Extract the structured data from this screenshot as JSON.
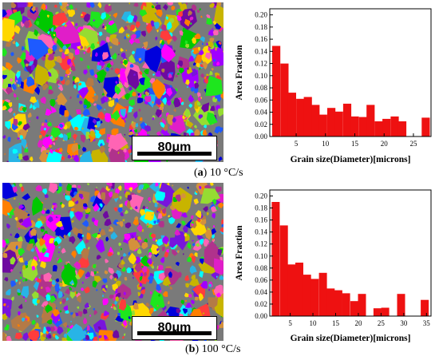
{
  "panels": [
    {
      "caption_letter": "a",
      "caption_text": " 10 °C/s",
      "scale_label": "80μm"
    },
    {
      "caption_letter": "b",
      "caption_text": " 100 °C/s",
      "scale_label": "80μm"
    }
  ],
  "colors": {
    "bar": "#ee1111",
    "grain_palette": [
      "#ff00ff",
      "#e01ec8",
      "#b0328c",
      "#ff3c3c",
      "#ff7f00",
      "#d4913c",
      "#b47a46",
      "#c8b400",
      "#ffd700",
      "#1ee61e",
      "#00c800",
      "#00ffff",
      "#28b4e6",
      "#1e5aff",
      "#0000dc",
      "#7814dc",
      "#a000ff",
      "#6e0aa0",
      "#ff64b4",
      "#96dc32"
    ]
  },
  "chart_data": [
    {
      "type": "bar",
      "xlabel": "Grain size(Diameter)[microns]",
      "ylabel": "Area Fraction",
      "xlim": [
        0.5,
        28
      ],
      "xticks": [
        5,
        10,
        15,
        20,
        25
      ],
      "ylim": [
        0,
        0.21
      ],
      "yticks": [
        "0.00",
        "0.02",
        "0.04",
        "0.06",
        "0.08",
        "0.10",
        "0.12",
        "0.14",
        "0.16",
        "0.18",
        "0.20"
      ],
      "x": [
        1.6,
        3.0,
        4.3,
        5.7,
        7.0,
        8.3,
        9.6,
        11.0,
        12.3,
        13.7,
        15.0,
        16.4,
        17.7,
        19.1,
        20.4,
        21.8,
        23.1,
        24.4,
        27.1
      ],
      "values": [
        0.149,
        0.12,
        0.072,
        0.062,
        0.065,
        0.052,
        0.036,
        0.047,
        0.041,
        0.054,
        0.033,
        0.032,
        0.052,
        0.025,
        0.029,
        0.033,
        0.025,
        0.0,
        0.031
      ]
    },
    {
      "type": "bar",
      "xlabel": "Grain size(Diameter)[microns]",
      "ylabel": "Area Fraction",
      "xlim": [
        0.5,
        36
      ],
      "xticks": [
        5,
        10,
        15,
        20,
        25,
        30,
        35
      ],
      "ylim": [
        0,
        0.21
      ],
      "yticks": [
        "0.00",
        "0.02",
        "0.04",
        "0.06",
        "0.08",
        "0.10",
        "0.12",
        "0.14",
        "0.16",
        "0.18",
        "0.20"
      ],
      "x": [
        1.8,
        3.6,
        5.3,
        7.0,
        8.7,
        10.4,
        12.2,
        13.9,
        15.6,
        17.3,
        19.1,
        20.8,
        24.2,
        25.9,
        29.4,
        34.6
      ],
      "values": [
        0.19,
        0.151,
        0.086,
        0.089,
        0.069,
        0.062,
        0.072,
        0.046,
        0.043,
        0.038,
        0.025,
        0.037,
        0.013,
        0.014,
        0.037,
        0.027
      ]
    }
  ]
}
